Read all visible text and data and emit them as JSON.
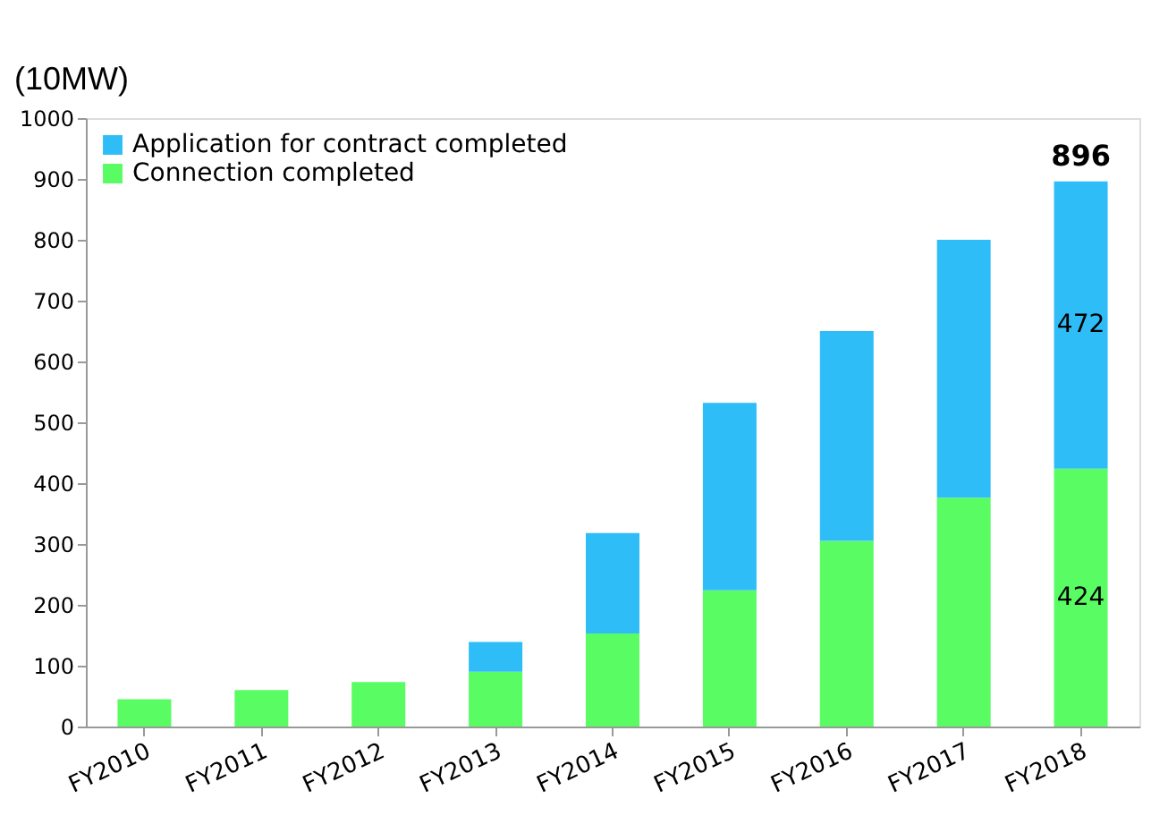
{
  "chart_data": {
    "type": "bar",
    "stacked": true,
    "ylabel": "(10MW)",
    "categories": [
      "FY2010",
      "FY2011",
      "FY2012",
      "FY2013",
      "FY2014",
      "FY2015",
      "FY2016",
      "FY2017",
      "FY2018"
    ],
    "series": [
      {
        "name": "Connection completed",
        "color": "#5afc64",
        "values": [
          45,
          60,
          73,
          90,
          153,
          224,
          305,
          376,
          424
        ],
        "value_labels": [
          null,
          null,
          null,
          null,
          null,
          null,
          null,
          null,
          "424"
        ]
      },
      {
        "name": "Application for contract completed",
        "color": "#2fbdf8",
        "values": [
          0,
          0,
          0,
          49,
          165,
          308,
          345,
          424,
          472
        ],
        "value_labels": [
          null,
          null,
          null,
          null,
          null,
          null,
          null,
          null,
          "472"
        ]
      }
    ],
    "totals": [
      null,
      null,
      null,
      null,
      null,
      null,
      null,
      null,
      "896"
    ],
    "ylim": [
      0,
      1000
    ],
    "yticks": [
      0,
      100,
      200,
      300,
      400,
      500,
      600,
      700,
      800,
      900,
      1000
    ],
    "grid": false,
    "legend": "top left"
  }
}
